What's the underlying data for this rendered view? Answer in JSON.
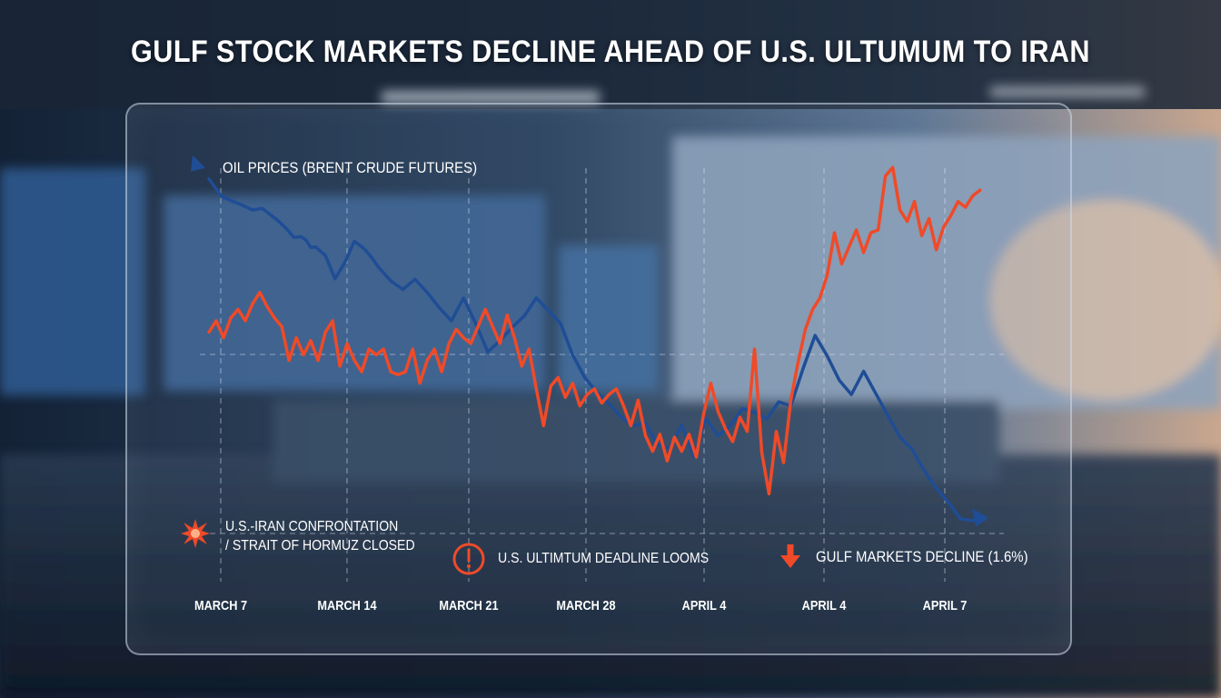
{
  "title": "GULF STOCK MARKETS DECLINE AHEAD OF U.S. ULTUMUM TO IRAN",
  "colors": {
    "oil": "#1f4d96",
    "gulf": "#f04a28",
    "text": "#ffffff"
  },
  "chart_data": {
    "type": "line",
    "legend_label": "OIL PRICES (BRENT CRUDE FUTURES)",
    "categories": [
      "MARCH 7",
      "MARCH 14",
      "MARCH 21",
      "MARCH 28",
      "APRIL 4",
      "APRIL 4",
      "APRIL 7"
    ],
    "annotations": [
      {
        "icon": "burst-icon",
        "line1": "U.S.-IRAN CONFRONTATION",
        "line2": "/ STRAIT OF HORMUZ CLOSED"
      },
      {
        "icon": "exclamation-icon",
        "line1": "U.S. ULTIMTUM DEADLINE LOOMS"
      },
      {
        "icon": "down-arrow-icon",
        "line1": "GULF MARKETS DECLINE (1.6%)"
      }
    ],
    "grid": true,
    "series": [
      {
        "color": "blue",
        "x": [
          0,
          0.5,
          1,
          1.3,
          1.8,
          2.2,
          2.8,
          3.2,
          3.5,
          3.8,
          4.0,
          4.2,
          4.4,
          4.8,
          5.2,
          5.6,
          6.0,
          6.4,
          6.7,
          7.0,
          7.5,
          8.0,
          8.5,
          9.0,
          9.5,
          10.0,
          10.5,
          11.0,
          11.5,
          12.0,
          12.5,
          13.0,
          13.5,
          14.0,
          14.5,
          15.0,
          15.5,
          16.0,
          16.5,
          17.0,
          17.5,
          18.0,
          18.5,
          19.0,
          19.5,
          20.0,
          20.5,
          21.0,
          21.5,
          22.0,
          22.5,
          23.0,
          23.5,
          24.0,
          24.5,
          25.0,
          25.5,
          26.0,
          26.5,
          27.0,
          27.5,
          28.0,
          28.5,
          29.0,
          29.5,
          30.0,
          30.5,
          31.0,
          31.5,
          32.0
        ],
        "y": [
          92,
          89,
          88,
          87.5,
          86.5,
          86.8,
          84.8,
          83.2,
          81.7,
          81.8,
          81.2,
          79.9,
          80.0,
          78.5,
          74.4,
          77.2,
          81.0,
          79.7,
          78.2,
          76.4,
          74.0,
          72.5,
          74.3,
          72.0,
          69.3,
          67.0,
          71.0,
          66.5,
          61.5,
          63.5,
          65.8,
          67.8,
          71.0,
          68.8,
          66.5,
          61.0,
          57.0,
          54.4,
          52.4,
          50.0,
          48.5,
          49.0,
          45.2,
          44.5,
          48.6,
          43.0,
          49.8,
          46.7,
          48.5,
          51.5,
          50.9,
          49.7,
          52.7,
          52.0,
          58.5,
          64.4,
          60.8,
          56.5,
          54.0,
          58.1,
          54.2,
          50.3,
          46.5,
          44.4,
          40.6,
          37.5,
          35.0,
          32.1,
          31.8,
          32.0
        ]
      },
      {
        "color": "orange",
        "x": [
          0,
          0.3,
          0.6,
          0.9,
          1.2,
          1.5,
          1.8,
          2.1,
          2.4,
          2.7,
          3.0,
          3.3,
          3.6,
          3.9,
          4.2,
          4.5,
          4.8,
          5.1,
          5.4,
          5.7,
          6.0,
          6.3,
          6.6,
          6.9,
          7.2,
          7.5,
          7.8,
          8.1,
          8.4,
          8.7,
          9.0,
          9.3,
          9.6,
          9.9,
          10.2,
          10.5,
          10.8,
          11.1,
          11.4,
          11.7,
          12.0,
          12.3,
          12.6,
          12.9,
          13.2,
          13.5,
          13.8,
          14.1,
          14.4,
          14.7,
          15.0,
          15.3,
          15.6,
          15.9,
          16.2,
          16.5,
          16.8,
          17.1,
          17.4,
          17.7,
          18.0,
          18.3,
          18.6,
          18.9,
          19.2,
          19.5,
          19.8,
          20.1,
          20.4,
          20.7,
          21.0,
          21.3,
          21.6,
          21.9,
          22.2,
          22.5,
          22.8,
          23.1,
          23.4,
          23.7,
          24.0,
          24.3,
          24.6,
          24.9,
          25.2,
          25.5,
          25.8,
          26.1,
          26.4,
          26.7,
          27.0,
          27.3,
          27.6,
          27.9,
          28.2,
          28.5,
          28.8,
          29.1,
          29.4,
          29.7,
          30.0,
          30.3,
          30.6,
          30.9,
          31.2,
          31.5,
          31.8
        ],
        "y": [
          65,
          67,
          64,
          67.5,
          69,
          67,
          70,
          72,
          69.5,
          67.5,
          66,
          60,
          64,
          61,
          63.5,
          60,
          65,
          67,
          59,
          63,
          60,
          58,
          62,
          61,
          62,
          58,
          57.5,
          58,
          62,
          56,
          60,
          62,
          58,
          63,
          65.5,
          64,
          63,
          66,
          69,
          66,
          63,
          68,
          64,
          59,
          62,
          55,
          48.5,
          55.5,
          57,
          53.5,
          56,
          52,
          54,
          55,
          52.5,
          54,
          55,
          52,
          48.5,
          53,
          46.8,
          44,
          47,
          42.3,
          46.5,
          44,
          47,
          43,
          50.5,
          56,
          51,
          48,
          45.7,
          50,
          47.5,
          62,
          43.8,
          36.5,
          47.5,
          42,
          53,
          59.7,
          65.5,
          69,
          71,
          75,
          82.5,
          77,
          80,
          83,
          79,
          82.5,
          83,
          92.5,
          94,
          86.5,
          84.5,
          88,
          82,
          85,
          79.5,
          83.5,
          85.5,
          88,
          87,
          89,
          90
        ]
      }
    ]
  }
}
